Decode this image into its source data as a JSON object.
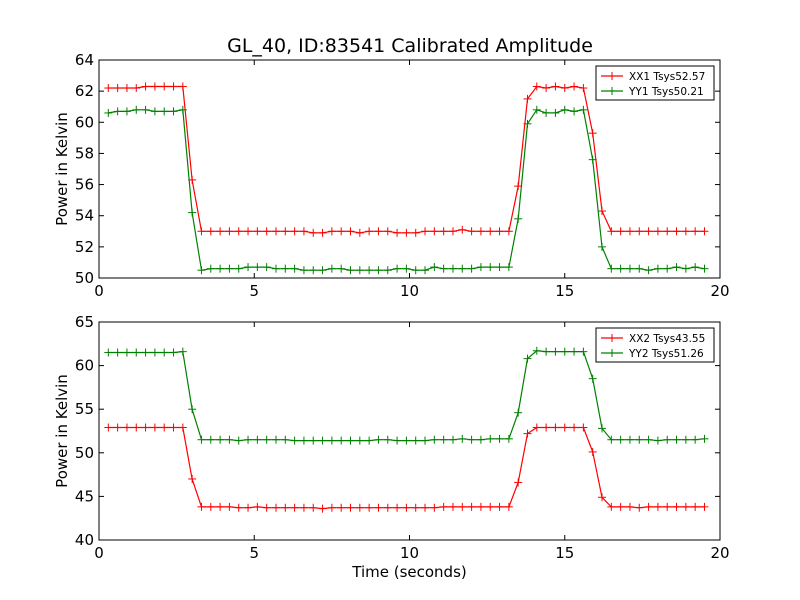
{
  "title": "GL_40, ID:83541 Calibrated Amplitude",
  "colors": {
    "red": "#ff0000",
    "green": "#008000"
  },
  "chart_data": [
    {
      "type": "line",
      "xlabel": "",
      "ylabel": "Power in Kelvin",
      "xlim": [
        0,
        20
      ],
      "ylim": [
        50,
        64
      ],
      "xticks": [
        0,
        5,
        10,
        15,
        20
      ],
      "yticks": [
        50,
        52,
        54,
        56,
        58,
        60,
        62,
        64
      ],
      "grid": false,
      "legend_position": "top-right",
      "x": [
        0.3,
        0.6,
        0.9,
        1.2,
        1.5,
        1.8,
        2.1,
        2.4,
        2.7,
        3.0,
        3.3,
        3.6,
        3.9,
        4.2,
        4.5,
        4.8,
        5.1,
        5.4,
        5.7,
        6.0,
        6.3,
        6.6,
        6.9,
        7.2,
        7.5,
        7.8,
        8.1,
        8.4,
        8.7,
        9.0,
        9.3,
        9.6,
        9.9,
        10.2,
        10.5,
        10.8,
        11.1,
        11.4,
        11.7,
        12.0,
        12.3,
        12.6,
        12.9,
        13.2,
        13.5,
        13.8,
        14.1,
        14.4,
        14.7,
        15.0,
        15.3,
        15.6,
        15.9,
        16.2,
        16.5,
        16.8,
        17.1,
        17.4,
        17.7,
        18.0,
        18.3,
        18.6,
        18.9,
        19.2,
        19.5
      ],
      "series": [
        {
          "name": "XX1 Tsys52.57",
          "color": "#ff0000",
          "values": [
            62.2,
            62.2,
            62.2,
            62.2,
            62.3,
            62.3,
            62.3,
            62.3,
            62.3,
            56.3,
            53.0,
            53.0,
            53.0,
            53.0,
            53.0,
            53.0,
            53.0,
            53.0,
            53.0,
            53.0,
            53.0,
            53.0,
            52.9,
            52.9,
            53.0,
            53.0,
            53.0,
            52.9,
            53.0,
            53.0,
            53.0,
            52.9,
            52.9,
            52.9,
            53.0,
            53.0,
            53.0,
            53.0,
            53.1,
            53.0,
            53.0,
            53.0,
            53.0,
            53.0,
            55.9,
            61.5,
            62.3,
            62.2,
            62.3,
            62.2,
            62.3,
            62.2,
            59.3,
            54.3,
            53.0,
            53.0,
            53.0,
            53.0,
            53.0,
            53.0,
            53.0,
            53.0,
            53.0,
            53.0,
            53.0
          ]
        },
        {
          "name": "YY1 Tsys50.21",
          "color": "#008000",
          "values": [
            60.6,
            60.7,
            60.7,
            60.8,
            60.8,
            60.7,
            60.7,
            60.7,
            60.8,
            54.2,
            50.5,
            50.6,
            50.6,
            50.6,
            50.6,
            50.7,
            50.7,
            50.7,
            50.6,
            50.6,
            50.6,
            50.5,
            50.5,
            50.5,
            50.6,
            50.6,
            50.5,
            50.5,
            50.5,
            50.5,
            50.5,
            50.6,
            50.6,
            50.5,
            50.5,
            50.7,
            50.6,
            50.6,
            50.6,
            50.6,
            50.7,
            50.7,
            50.7,
            50.7,
            53.8,
            59.9,
            60.8,
            60.6,
            60.6,
            60.8,
            60.7,
            60.8,
            57.6,
            52.0,
            50.6,
            50.6,
            50.6,
            50.6,
            50.5,
            50.6,
            50.6,
            50.7,
            50.6,
            50.7,
            50.6
          ]
        }
      ]
    },
    {
      "type": "line",
      "xlabel": "Time (seconds)",
      "ylabel": "Power in Kelvin",
      "xlim": [
        0,
        20
      ],
      "ylim": [
        40,
        65
      ],
      "xticks": [
        0,
        5,
        10,
        15,
        20
      ],
      "yticks": [
        40,
        45,
        50,
        55,
        60,
        65
      ],
      "grid": false,
      "legend_position": "top-right",
      "x": [
        0.3,
        0.6,
        0.9,
        1.2,
        1.5,
        1.8,
        2.1,
        2.4,
        2.7,
        3.0,
        3.3,
        3.6,
        3.9,
        4.2,
        4.5,
        4.8,
        5.1,
        5.4,
        5.7,
        6.0,
        6.3,
        6.6,
        6.9,
        7.2,
        7.5,
        7.8,
        8.1,
        8.4,
        8.7,
        9.0,
        9.3,
        9.6,
        9.9,
        10.2,
        10.5,
        10.8,
        11.1,
        11.4,
        11.7,
        12.0,
        12.3,
        12.6,
        12.9,
        13.2,
        13.5,
        13.8,
        14.1,
        14.4,
        14.7,
        15.0,
        15.3,
        15.6,
        15.9,
        16.2,
        16.5,
        16.8,
        17.1,
        17.4,
        17.7,
        18.0,
        18.3,
        18.6,
        18.9,
        19.2,
        19.5
      ],
      "series": [
        {
          "name": "XX2 Tsys43.55",
          "color": "#ff0000",
          "values": [
            52.9,
            52.9,
            52.9,
            52.9,
            52.9,
            52.9,
            52.9,
            52.9,
            52.9,
            47.0,
            43.8,
            43.8,
            43.8,
            43.8,
            43.7,
            43.7,
            43.8,
            43.7,
            43.7,
            43.7,
            43.7,
            43.7,
            43.7,
            43.6,
            43.7,
            43.7,
            43.7,
            43.7,
            43.7,
            43.7,
            43.7,
            43.7,
            43.7,
            43.7,
            43.7,
            43.7,
            43.8,
            43.8,
            43.8,
            43.8,
            43.8,
            43.8,
            43.8,
            43.8,
            46.6,
            52.2,
            52.9,
            52.9,
            52.9,
            52.9,
            52.9,
            52.9,
            50.1,
            44.9,
            43.8,
            43.8,
            43.8,
            43.7,
            43.8,
            43.8,
            43.8,
            43.8,
            43.8,
            43.8,
            43.8
          ]
        },
        {
          "name": "YY2 Tsys51.26",
          "color": "#008000",
          "values": [
            61.5,
            61.5,
            61.5,
            61.5,
            61.5,
            61.5,
            61.5,
            61.5,
            61.6,
            55.0,
            51.5,
            51.5,
            51.5,
            51.5,
            51.4,
            51.5,
            51.5,
            51.5,
            51.5,
            51.5,
            51.4,
            51.4,
            51.4,
            51.4,
            51.4,
            51.4,
            51.4,
            51.4,
            51.4,
            51.5,
            51.5,
            51.4,
            51.4,
            51.4,
            51.4,
            51.5,
            51.5,
            51.5,
            51.6,
            51.5,
            51.5,
            51.6,
            51.6,
            51.6,
            54.6,
            60.8,
            61.7,
            61.6,
            61.6,
            61.6,
            61.6,
            61.6,
            58.5,
            52.8,
            51.5,
            51.5,
            51.5,
            51.5,
            51.5,
            51.4,
            51.5,
            51.5,
            51.5,
            51.5,
            51.6
          ]
        }
      ]
    }
  ]
}
